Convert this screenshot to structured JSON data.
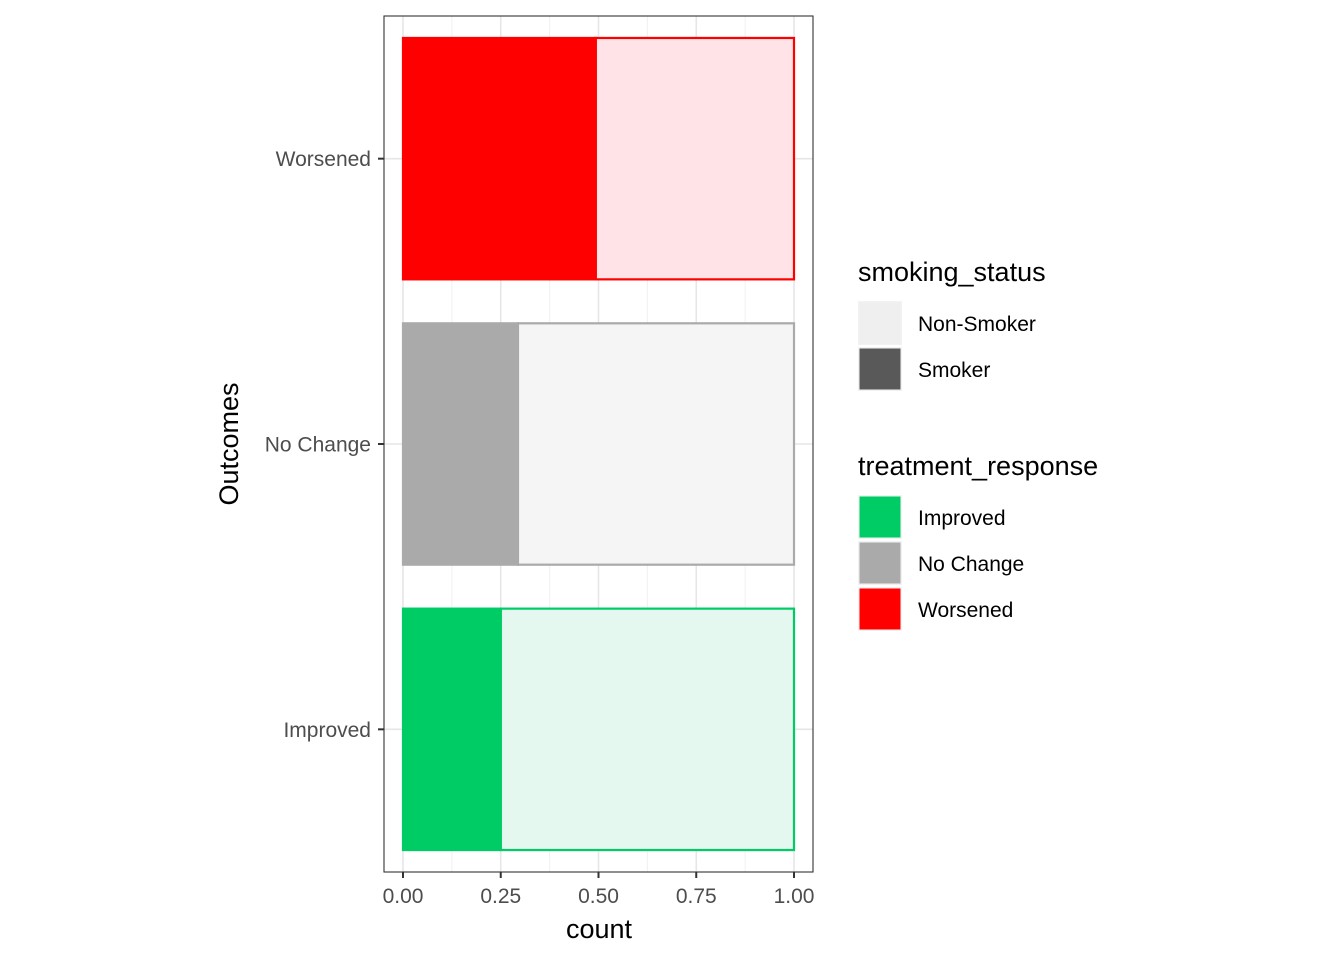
{
  "chart_data": {
    "type": "bar",
    "orientation": "horizontal",
    "position": "fill",
    "categories": [
      "Improved",
      "No Change",
      "Worsened"
    ],
    "series": [
      {
        "name": "Smoker",
        "values": [
          0.25,
          0.294,
          0.493
        ]
      },
      {
        "name": "Non-Smoker",
        "values": [
          0.75,
          0.706,
          0.507
        ]
      }
    ],
    "xlabel": "count",
    "ylabel": "Outcomes",
    "xlim": [
      0,
      1
    ],
    "x_ticks": [
      "0.00",
      "0.25",
      "0.50",
      "0.75",
      "1.00"
    ],
    "x_tick_values": [
      0,
      0.25,
      0.5,
      0.75,
      1
    ],
    "grid": true,
    "legend_position": "right",
    "colors": {
      "Improved": "#00cc66",
      "No Change": "#aaaaaa",
      "Worsened": "#ff0000",
      "Improved_light": "#e5f8ef",
      "No Change_light": "#f5f5f5",
      "Worsened_light": "#ffe3e6"
    },
    "legends": [
      {
        "title": "smoking_status",
        "items": [
          {
            "label": "Non-Smoker",
            "color": "#efefef"
          },
          {
            "label": "Smoker",
            "color": "#595959"
          }
        ]
      },
      {
        "title": "treatment_response",
        "items": [
          {
            "label": "Improved",
            "color": "#00cc66"
          },
          {
            "label": "No Change",
            "color": "#aaaaaa"
          },
          {
            "label": "Worsened",
            "color": "#ff0000"
          }
        ]
      }
    ]
  }
}
